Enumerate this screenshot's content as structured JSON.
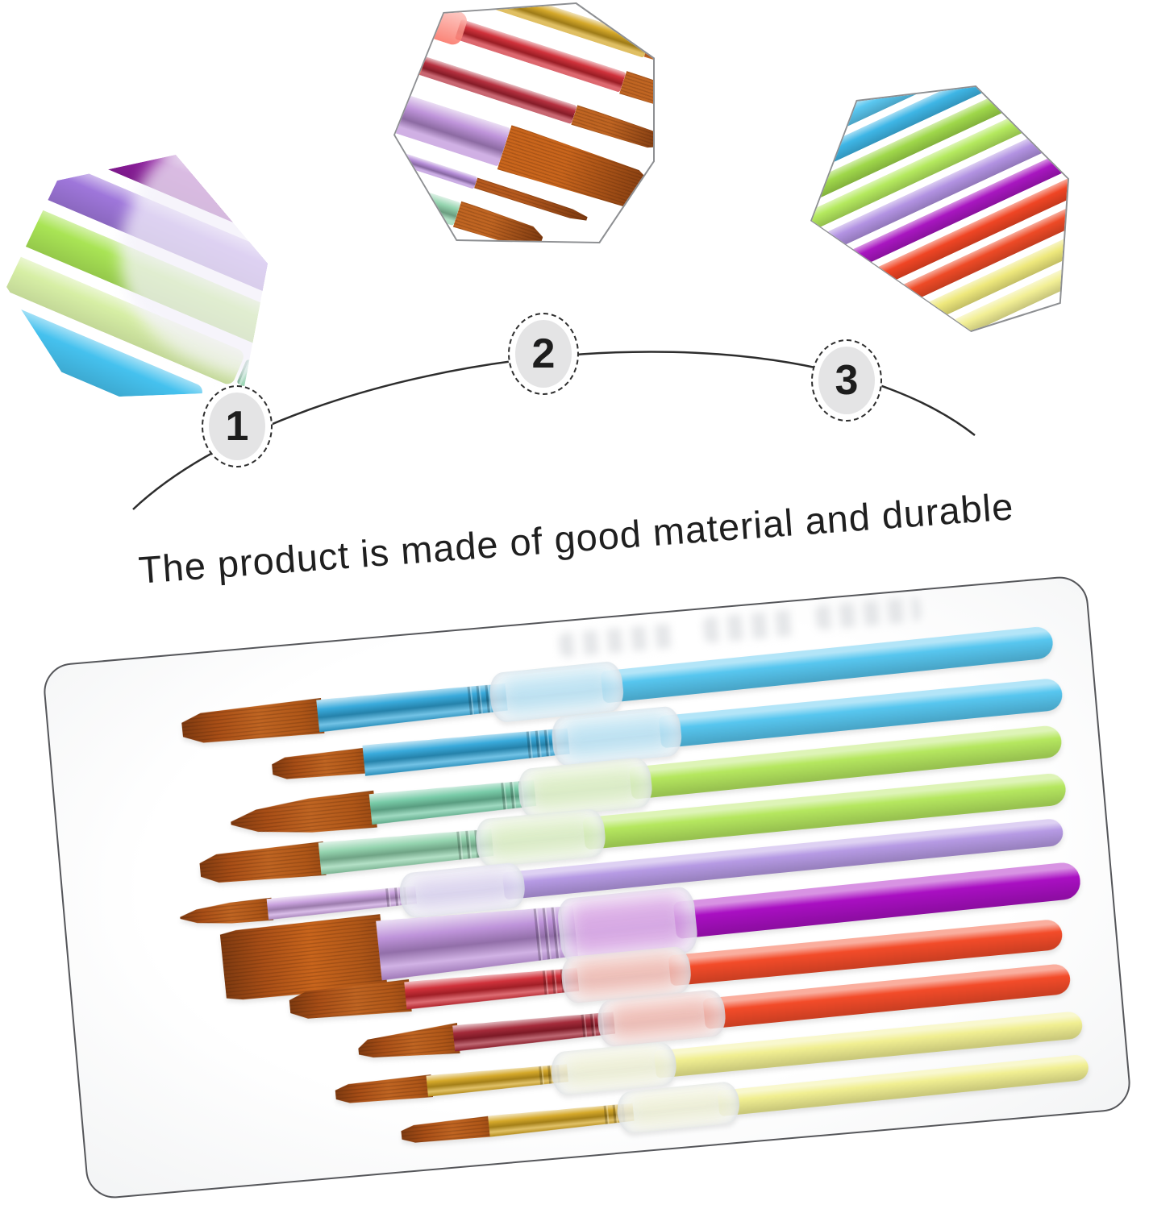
{
  "caption": {
    "text": "The product is made of good material and durable"
  },
  "steps": [
    {
      "label": "1"
    },
    {
      "label": "2"
    },
    {
      "label": "3"
    }
  ],
  "colors": {
    "background": "#ffffff",
    "arc_line": "#2d2d2d",
    "caption_text": "#1f1f1f",
    "step_fill": "#e4e4e5",
    "step_border": "#2e2e2e",
    "step_number": "#1d1d1d",
    "card_border": "#55565a",
    "card_background": "#ffffff",
    "grip_frost": "#eef1f5",
    "bristle_orange": "#c06522"
  },
  "brushes": [
    {
      "name": "blue flat brush",
      "handle": "#57c6ef",
      "ferrule": "#2fa6da",
      "bristle": "#c06522",
      "tip": "flat"
    },
    {
      "name": "blue small flat brush",
      "handle": "#57c6ef",
      "ferrule": "#2fa6da",
      "bristle": "#c06522",
      "tip": "flat"
    },
    {
      "name": "green round pointed brush",
      "handle": "#b5e75f",
      "ferrule": "#72c9a4",
      "bristle": "#c06522",
      "tip": "round"
    },
    {
      "name": "green flat brush",
      "handle": "#b5e75f",
      "ferrule": "#8fd2ab",
      "bristle": "#c06522",
      "tip": "flat"
    },
    {
      "name": "lilac small round brush",
      "handle": "#b69ae4",
      "ferrule": "#c79edd",
      "bristle": "#c06522",
      "tip": "round"
    },
    {
      "name": "purple wide flat brush",
      "handle": "#a90fc2",
      "ferrule": "#bb8ed8",
      "bristle": "#c9651c",
      "tip": "wide"
    },
    {
      "name": "red flat brush",
      "handle": "#f34b29",
      "ferrule": "#ce2731",
      "bristle": "#c06522",
      "tip": "flat"
    },
    {
      "name": "red angled brush",
      "handle": "#f34b29",
      "ferrule": "#a02030",
      "bristle": "#c06522",
      "tip": "angled"
    },
    {
      "name": "yellow small flat brush",
      "handle": "#f1ef92",
      "ferrule": "#d3a41f",
      "bristle": "#c06522",
      "tip": "flat"
    },
    {
      "name": "yellow small flat brush",
      "handle": "#f1ef92",
      "ferrule": "#d3a41f",
      "bristle": "#c06522",
      "tip": "flat"
    }
  ],
  "hexagons": [
    {
      "name": "handles-and-grips-closeup",
      "stripes": [
        "#8e1d9e",
        "#9e76da",
        "#a9e455",
        "#cdeb8f",
        "#45c1ee"
      ],
      "caps": [
        null,
        "#b98fe2",
        "#93d4ae",
        "#93d4ae",
        "#3fb2e2"
      ],
      "frost": "#f3f1fa"
    },
    {
      "name": "ferrules-and-bristles-closeup",
      "rows": [
        {
          "stub": "#f2ef8e",
          "ferrule": "#d3a41f",
          "bristle": "#a8511a"
        },
        {
          "stub": null,
          "ferrule": "#d3a41f",
          "bristle": "#c06522"
        },
        {
          "stub": "#fa6050",
          "ferrule": "#ce2731",
          "bristle": "#c06522"
        },
        {
          "stub": "#f34b29",
          "ferrule": "#b22535",
          "bristle": "#c06522"
        },
        {
          "stub": "#a912c0",
          "ferrule": "#bb8ed8",
          "bristle": "#c9651c"
        },
        {
          "stub": null,
          "ferrule": "#b48ad8",
          "bristle": "#b65a1e"
        },
        {
          "stub": "#d8e8b8",
          "ferrule": "#8fd2ab",
          "bristle": "#c06522"
        },
        {
          "stub": null,
          "ferrule": "#66c2bb",
          "bristle": "#c06522"
        }
      ]
    },
    {
      "name": "handle-rods-closeup",
      "rods": [
        "#5ac7f0",
        "#3eb6e6",
        "#9fd84a",
        "#b4e95e",
        "#b292e2",
        "#a816c0",
        "#f04524",
        "#ee4a26",
        "#eee87c",
        "#f2ef95"
      ]
    }
  ]
}
